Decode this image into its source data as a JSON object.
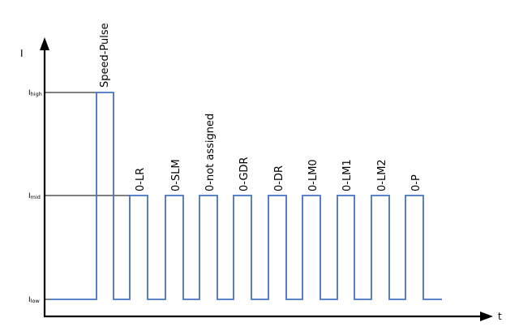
{
  "y_axis_label": "I",
  "x_axis_label": "t",
  "levels": [
    {
      "main": "I",
      "sub": "high"
    },
    {
      "main": "I",
      "sub": "mid"
    },
    {
      "main": "I",
      "sub": "low"
    }
  ],
  "pulse_labels": [
    "Speed-Pulse",
    "0-LR",
    "0-SLM",
    "0-not assigned",
    "0-GDR",
    "0-DR",
    "0-LM0",
    "0-LM1",
    "0-LM2",
    "0-P"
  ],
  "colors": {
    "waveform": "#4472C4",
    "axis": "#000000"
  }
}
